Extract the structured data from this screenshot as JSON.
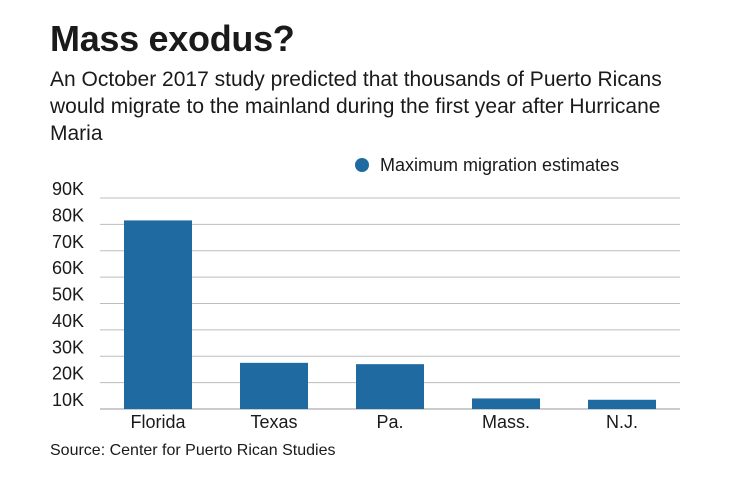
{
  "title": "Mass exodus?",
  "subtitle": "An October 2017 study predicted that thousands of Puerto Ricans would migrate to the mainland during the first year after Hurricane Maria",
  "source": "Source: Center for Puerto Rican Studies",
  "colors": {
    "bar": "#1f6aa0",
    "grid": "#bdbdbd",
    "text": "#1a1a1a"
  },
  "chart_data": {
    "type": "bar",
    "categories": [
      "Florida",
      "Texas",
      "Pa.",
      "Mass.",
      "N.J."
    ],
    "series": [
      {
        "name": "Maximum migration estimates",
        "values": [
          81500,
          27500,
          27000,
          14000,
          13500
        ]
      }
    ],
    "ylim": [
      10000,
      90000
    ],
    "yticks": [
      10000,
      20000,
      30000,
      40000,
      50000,
      60000,
      70000,
      80000,
      90000
    ],
    "ytick_labels": [
      "10K",
      "20K",
      "30K",
      "40K",
      "50K",
      "60K",
      "70K",
      "80K",
      "90K"
    ],
    "grid": true,
    "legend_position": "top-right",
    "xlabel": "",
    "ylabel": ""
  }
}
